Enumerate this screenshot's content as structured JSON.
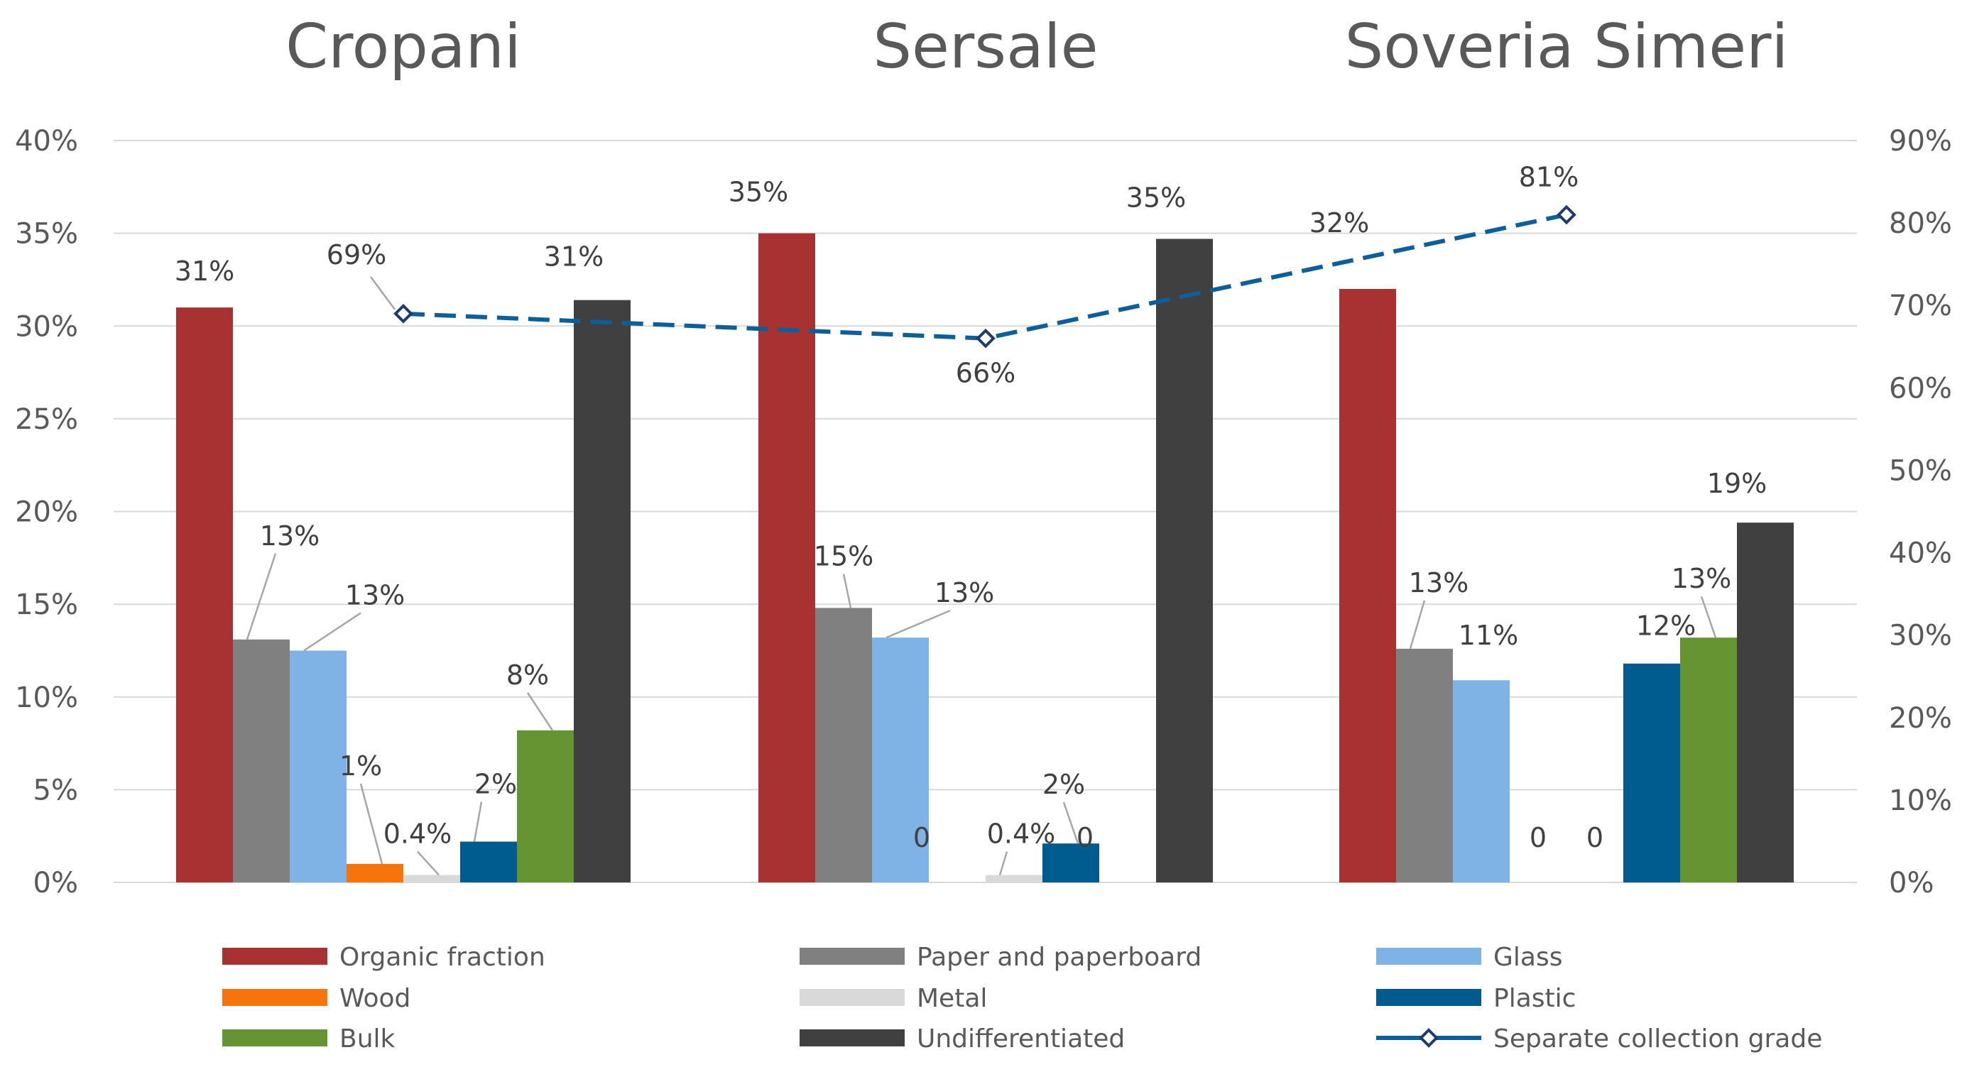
{
  "chart_data": {
    "type": "bar",
    "groups": [
      "Cropani",
      "Sersale",
      "Soveria Simeri"
    ],
    "series": [
      {
        "name": "Organic fraction",
        "color": "#a83232",
        "values": [
          31,
          35,
          32
        ],
        "labels": [
          "31%",
          "35%",
          "32%"
        ]
      },
      {
        "name": "Paper and paperboard",
        "color": "#808080",
        "values": [
          13.1,
          14.8,
          12.6
        ],
        "labels": [
          "13%",
          "15%",
          "13%"
        ]
      },
      {
        "name": "Glass",
        "color": "#7fb2e5",
        "values": [
          12.5,
          13.2,
          10.9
        ],
        "labels": [
          "13%",
          "13%",
          "11%"
        ]
      },
      {
        "name": "Wood",
        "color": "#f7730c",
        "values": [
          1,
          0,
          0
        ],
        "labels": [
          "1%",
          "0",
          "0"
        ]
      },
      {
        "name": "Metal",
        "color": "#d9d9d9",
        "values": [
          0.4,
          0.4,
          0
        ],
        "labels": [
          "0.4%",
          "0.4%",
          "0"
        ]
      },
      {
        "name": "Plastic",
        "color": "#005b8f",
        "values": [
          2.2,
          2.1,
          11.8
        ],
        "labels": [
          "2%",
          "2%",
          "12%"
        ]
      },
      {
        "name": "Bulk",
        "color": "#669432",
        "values": [
          8.2,
          0,
          13.2
        ],
        "labels": [
          "8%",
          "0",
          "13%"
        ]
      },
      {
        "name": "Undifferentiated",
        "color": "#404040",
        "values": [
          31.4,
          34.7,
          19.4
        ],
        "labels": [
          "31%",
          "35%",
          "19%"
        ]
      }
    ],
    "line_series": {
      "name": "Separate collection grade",
      "color": "#0e5e99",
      "values": [
        69,
        66,
        81
      ],
      "labels": [
        "69%",
        "66%",
        "81%"
      ],
      "axis": "right"
    },
    "left_axis": {
      "ylim": [
        0,
        40
      ],
      "ticks": [
        "0%",
        "5%",
        "10%",
        "15%",
        "20%",
        "25%",
        "30%",
        "35%",
        "40%"
      ]
    },
    "right_axis": {
      "ylim": [
        0,
        90
      ],
      "ticks": [
        "0%",
        "10%",
        "20%",
        "30%",
        "40%",
        "50%",
        "60%",
        "70%",
        "80%",
        "90%"
      ]
    },
    "legend_position": "bottom",
    "grid": true
  }
}
